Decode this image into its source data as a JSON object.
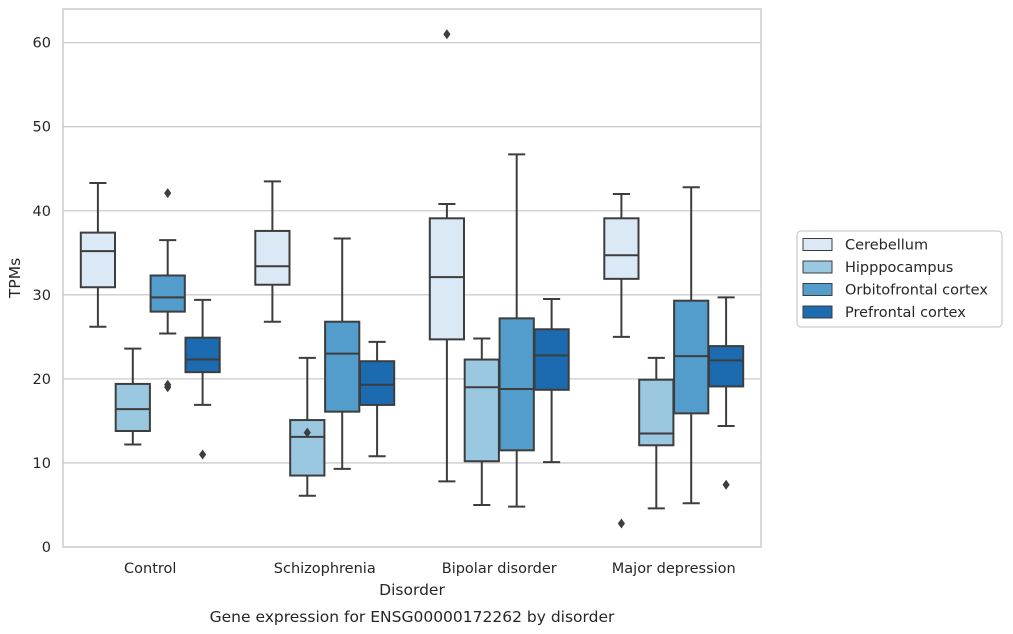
{
  "caption": "Gene expression for ENSG00000172262 by disorder",
  "chart_data": {
    "type": "box",
    "xlabel": "Disorder",
    "ylabel": "TPMs",
    "ylim": [
      0,
      64
    ],
    "yticks": [
      0,
      10,
      20,
      30,
      40,
      50,
      60
    ],
    "categories": [
      "Control",
      "Schizophrenia",
      "Bipolar disorder",
      "Major depression"
    ],
    "grid": "horizontal",
    "legend_position": "right",
    "series": [
      {
        "name": "Cerebellum",
        "color": "#dbe9f6",
        "boxes": [
          {
            "whisker_low": 26.2,
            "q1": 30.9,
            "median": 35.2,
            "q3": 37.4,
            "whisker_high": 43.3,
            "outliers": []
          },
          {
            "whisker_low": 26.8,
            "q1": 31.2,
            "median": 33.4,
            "q3": 37.6,
            "whisker_high": 43.5,
            "outliers": []
          },
          {
            "whisker_low": 7.8,
            "q1": 24.7,
            "median": 32.1,
            "q3": 39.1,
            "whisker_high": 40.8,
            "outliers": [
              61.0
            ]
          },
          {
            "whisker_low": 25.0,
            "q1": 31.9,
            "median": 34.7,
            "q3": 39.1,
            "whisker_high": 42.0,
            "outliers": [
              2.8
            ]
          }
        ]
      },
      {
        "name": "Hipppocampus",
        "color": "#9ac8e0",
        "boxes": [
          {
            "whisker_low": 12.2,
            "q1": 13.8,
            "median": 16.4,
            "q3": 19.4,
            "whisker_high": 23.6,
            "outliers": []
          },
          {
            "whisker_low": 6.1,
            "q1": 8.5,
            "median": 13.1,
            "q3": 15.1,
            "whisker_high": 22.5,
            "outliers": [
              13.6
            ]
          },
          {
            "whisker_low": 5.0,
            "q1": 10.2,
            "median": 19.0,
            "q3": 22.3,
            "whisker_high": 24.8,
            "outliers": []
          },
          {
            "whisker_low": 4.6,
            "q1": 12.1,
            "median": 13.5,
            "q3": 19.9,
            "whisker_high": 22.5,
            "outliers": []
          }
        ]
      },
      {
        "name": "Orbitofrontal cortex",
        "color": "#529dcc",
        "boxes": [
          {
            "whisker_low": 25.4,
            "q1": 28.0,
            "median": 29.7,
            "q3": 32.3,
            "whisker_high": 36.5,
            "outliers": [
              42.1,
              19.3,
              19.0
            ]
          },
          {
            "whisker_low": 9.3,
            "q1": 16.1,
            "median": 23.0,
            "q3": 26.8,
            "whisker_high": 36.7,
            "outliers": []
          },
          {
            "whisker_low": 4.8,
            "q1": 11.5,
            "median": 18.8,
            "q3": 27.2,
            "whisker_high": 46.7,
            "outliers": []
          },
          {
            "whisker_low": 5.2,
            "q1": 15.9,
            "median": 22.7,
            "q3": 29.3,
            "whisker_high": 42.8,
            "outliers": []
          }
        ]
      },
      {
        "name": "Prefrontal cortex",
        "color": "#1c6aaf",
        "boxes": [
          {
            "whisker_low": 16.9,
            "q1": 20.8,
            "median": 22.3,
            "q3": 24.9,
            "whisker_high": 29.4,
            "outliers": [
              11.0
            ]
          },
          {
            "whisker_low": 10.8,
            "q1": 16.9,
            "median": 19.3,
            "q3": 22.1,
            "whisker_high": 24.4,
            "outliers": []
          },
          {
            "whisker_low": 10.1,
            "q1": 18.7,
            "median": 22.8,
            "q3": 25.9,
            "whisker_high": 29.5,
            "outliers": []
          },
          {
            "whisker_low": 14.4,
            "q1": 19.1,
            "median": 22.2,
            "q3": 23.9,
            "whisker_high": 29.7,
            "outliers": [
              7.4
            ]
          }
        ]
      }
    ]
  }
}
